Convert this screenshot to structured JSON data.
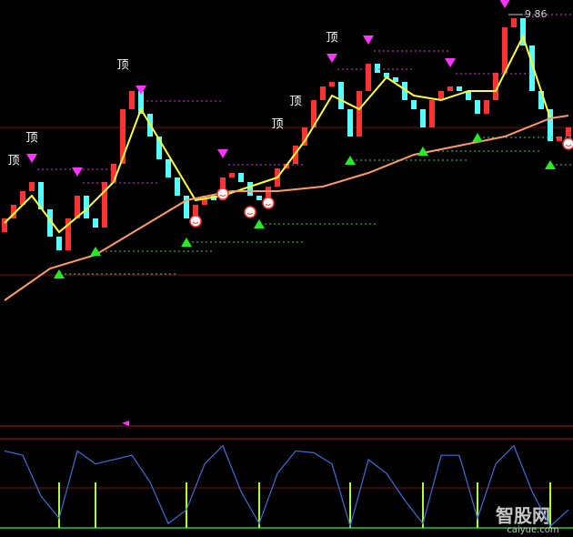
{
  "chart_data": {
    "type": "candlestick",
    "ylim": [
      5.4,
      10
    ],
    "open": [
      7.45,
      7.6,
      7.75,
      7.9,
      8.0,
      7.7,
      7.4,
      7.25,
      7.6,
      7.85,
      7.6,
      7.5,
      8.0,
      8.2,
      8.8,
      9.0,
      8.75,
      8.5,
      8.25,
      8.05,
      7.85,
      7.6,
      7.75,
      7.85,
      7.8,
      8.05,
      8.1,
      8.0,
      7.85,
      7.8,
      7.95,
      8.15,
      8.2,
      8.4,
      8.6,
      8.9,
      9.05,
      9.1,
      8.8,
      8.5,
      9.0,
      9.3,
      9.2,
      9.15,
      9.1,
      8.9,
      8.8,
      8.6,
      8.9,
      9.0,
      9.05,
      9.0,
      8.9,
      8.75,
      8.9,
      9.2,
      9.7,
      9.8,
      9.5,
      9.0,
      8.8,
      8.45,
      8.5
    ],
    "close": [
      7.6,
      7.75,
      7.9,
      8.0,
      7.7,
      7.4,
      7.25,
      7.6,
      7.85,
      7.6,
      7.5,
      8.0,
      8.2,
      8.8,
      9.0,
      8.75,
      8.5,
      8.25,
      8.05,
      7.85,
      7.6,
      7.75,
      7.85,
      7.8,
      8.05,
      8.1,
      8.0,
      7.85,
      7.8,
      7.95,
      8.15,
      8.2,
      8.4,
      8.6,
      8.9,
      9.05,
      9.1,
      8.8,
      8.5,
      9.0,
      9.3,
      9.2,
      9.15,
      9.1,
      8.9,
      8.8,
      8.6,
      8.9,
      9.0,
      9.05,
      9.0,
      8.9,
      8.75,
      8.9,
      9.2,
      9.7,
      9.8,
      9.5,
      9.0,
      8.8,
      8.45,
      8.5,
      8.6
    ],
    "up_color": "#ff3232",
    "down_color": "#54ffff",
    "series": [
      {
        "color": "#ffff33",
        "x": [
          0,
          3,
          6,
          9,
          12,
          15,
          18,
          21,
          24,
          27,
          30,
          33,
          36,
          39,
          42,
          45,
          48,
          51,
          54,
          57,
          60
        ],
        "values": [
          7.55,
          7.85,
          7.45,
          7.7,
          8.0,
          8.8,
          8.3,
          7.8,
          7.85,
          7.95,
          8.05,
          8.45,
          8.95,
          8.8,
          9.15,
          8.95,
          8.9,
          9.0,
          9.0,
          9.6,
          8.7
        ]
      },
      {
        "color": "#ff9966",
        "x": [
          0,
          5,
          10,
          15,
          20,
          25,
          30,
          35,
          40,
          45,
          50,
          55,
          60,
          62
        ],
        "values": [
          6.7,
          7.05,
          7.2,
          7.5,
          7.8,
          7.9,
          7.9,
          7.95,
          8.1,
          8.3,
          8.4,
          8.5,
          8.7,
          8.73
        ]
      }
    ],
    "top_label": "顶",
    "top_label_indices": [
      1,
      3,
      13,
      30,
      32,
      36
    ],
    "sell_signals": [
      3,
      8,
      15,
      24,
      36,
      40,
      49,
      55
    ],
    "buy_signals": [
      6,
      10,
      20,
      28,
      38,
      46,
      52,
      60
    ],
    "smile_signals": [
      21,
      24,
      27,
      29,
      62
    ],
    "peak_label": "9.86",
    "peak_index": 55,
    "oscillator": {
      "color": "#3a6fd8",
      "ylim": [
        0,
        100
      ],
      "x": [
        0,
        2,
        4,
        6,
        8,
        10,
        12,
        14,
        16,
        18,
        20,
        22,
        24,
        26,
        28,
        30,
        32,
        34,
        36,
        38,
        40,
        42,
        44,
        46,
        48,
        50,
        52,
        54,
        56,
        58,
        60,
        62
      ],
      "values": [
        89,
        84,
        37,
        11,
        89,
        74,
        79,
        84,
        53,
        5,
        21,
        74,
        95,
        42,
        5,
        63,
        89,
        87,
        74,
        2,
        79,
        63,
        32,
        5,
        84,
        84,
        11,
        74,
        95,
        42,
        2,
        21
      ]
    },
    "watermark": {
      "name": "智股网",
      "site": "caiyue.com"
    }
  }
}
